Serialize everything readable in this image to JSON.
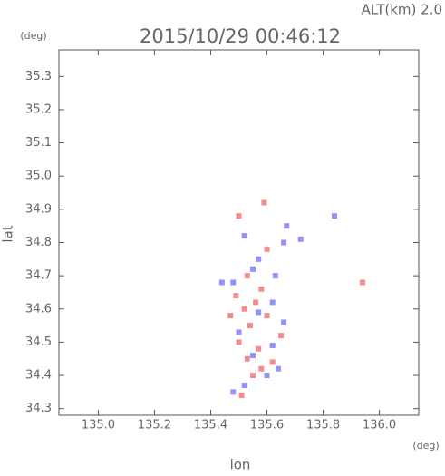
{
  "chart_data": {
    "type": "scatter",
    "title": "2015/10/29 00:46:12",
    "altitude_label": "ALT(km) 2.0",
    "y_unit": "(deg)",
    "x_unit": "(deg)",
    "xlabel": "lon",
    "ylabel": "lat",
    "xlim": [
      134.86,
      136.14
    ],
    "ylim": [
      34.28,
      35.38
    ],
    "xticks": [
      {
        "value": 135,
        "label": "135.0"
      },
      135.2,
      135.4,
      135.6,
      135.8,
      {
        "value": 136,
        "label": "136.0"
      }
    ],
    "yticks": [
      34.3,
      34.4,
      34.5,
      34.6,
      34.7,
      34.8,
      34.9,
      {
        "value": 35,
        "label": "35.0"
      },
      35.1,
      35.2,
      35.3
    ],
    "series": [
      {
        "color": "#f07070",
        "x": [
          135.51,
          135.55,
          135.58,
          135.53,
          135.57,
          135.5,
          135.62,
          135.54,
          135.6,
          135.52,
          135.56,
          135.49,
          135.58,
          135.53,
          135.6,
          135.59,
          135.94,
          135.5,
          135.65,
          135.47
        ],
        "values": [
          34.34,
          34.4,
          34.42,
          34.45,
          34.48,
          34.5,
          34.44,
          34.55,
          34.58,
          34.6,
          34.62,
          34.64,
          34.66,
          34.7,
          34.78,
          34.92,
          34.68,
          34.88,
          34.52,
          34.58
        ]
      },
      {
        "color": "#7878ee",
        "x": [
          135.52,
          135.48,
          135.6,
          135.64,
          135.55,
          135.62,
          135.5,
          135.66,
          135.57,
          135.48,
          135.62,
          135.55,
          135.66,
          135.72,
          135.84,
          135.67,
          135.52,
          135.44,
          135.57,
          135.63
        ],
        "values": [
          34.37,
          34.35,
          34.4,
          34.42,
          34.46,
          34.49,
          34.53,
          34.56,
          34.59,
          34.68,
          34.62,
          34.72,
          34.8,
          34.81,
          34.88,
          34.85,
          34.82,
          34.68,
          34.75,
          34.7
        ]
      }
    ]
  }
}
